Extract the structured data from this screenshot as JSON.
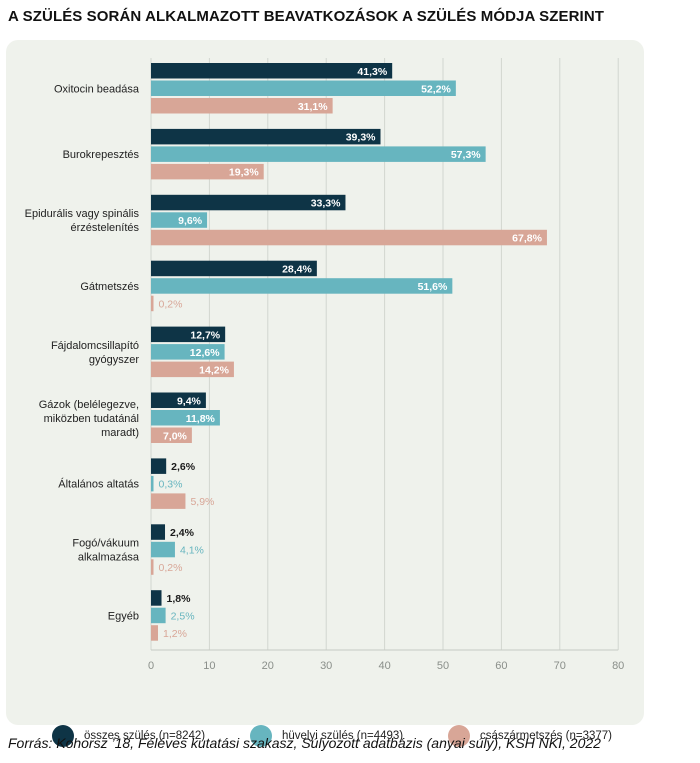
{
  "title": "A SZÜLÉS SORÁN ALKALMAZOTT BEAVATKOZÁSOK A SZÜLÉS MÓDJA SZERINT",
  "source": "Forrás: Kohorsz ’18, Féléves kutatási szakasz, Súlyozott adatbázis (anyai súly), KSH NKI, 2022",
  "chart_data": {
    "type": "bar",
    "orientation": "horizontal",
    "categories": [
      [
        "Oxitocin beadása"
      ],
      [
        "Burokrepesztés"
      ],
      [
        "Epidurális vagy spinális",
        "érzéstelenítés"
      ],
      [
        "Gátmetszés"
      ],
      [
        "Fájdalomcsillapító",
        "gyógyszer"
      ],
      [
        "Gázok (belélegezve,",
        "miközben tudatánál",
        "maradt)"
      ],
      [
        "Általános altatás"
      ],
      [
        "Fogó/vákuum",
        "alkalmazása"
      ],
      [
        "Egyéb"
      ]
    ],
    "series": [
      {
        "name": "összes szülés (n=8242)",
        "color": "#0e3446",
        "values": [
          41.3,
          39.3,
          33.3,
          28.4,
          12.7,
          9.4,
          2.6,
          2.4,
          1.8
        ],
        "labels": [
          "41,3%",
          "39,3%",
          "33,3%",
          "28,4%",
          "12,7%",
          "9,4%",
          "2,6%",
          "2,4%",
          "1,8%"
        ]
      },
      {
        "name": "hüvelyi szülés (n=4493)",
        "color": "#67b5bf",
        "values": [
          52.2,
          57.3,
          9.6,
          51.6,
          12.6,
          11.8,
          0.3,
          4.1,
          2.5
        ],
        "labels": [
          "52,2%",
          "57,3%",
          "9,6%",
          "51,6%",
          "12,6%",
          "11,8%",
          "0,3%",
          "4,1%",
          "2,5%"
        ]
      },
      {
        "name": "császármetszés (n=3377)",
        "color": "#d8a697",
        "values": [
          31.1,
          19.3,
          67.8,
          0.2,
          14.2,
          7.0,
          5.9,
          0.2,
          1.2
        ],
        "labels": [
          "31,1%",
          "19,3%",
          "67,8%",
          "0,2%",
          "14,2%",
          "7,0%",
          "5,9%",
          "0,2%",
          "1,2%"
        ]
      }
    ],
    "xlim": [
      0,
      80
    ],
    "xticks": [
      0,
      10,
      20,
      30,
      40,
      50,
      60,
      70,
      80
    ],
    "grid": true,
    "legend": "bottom"
  }
}
